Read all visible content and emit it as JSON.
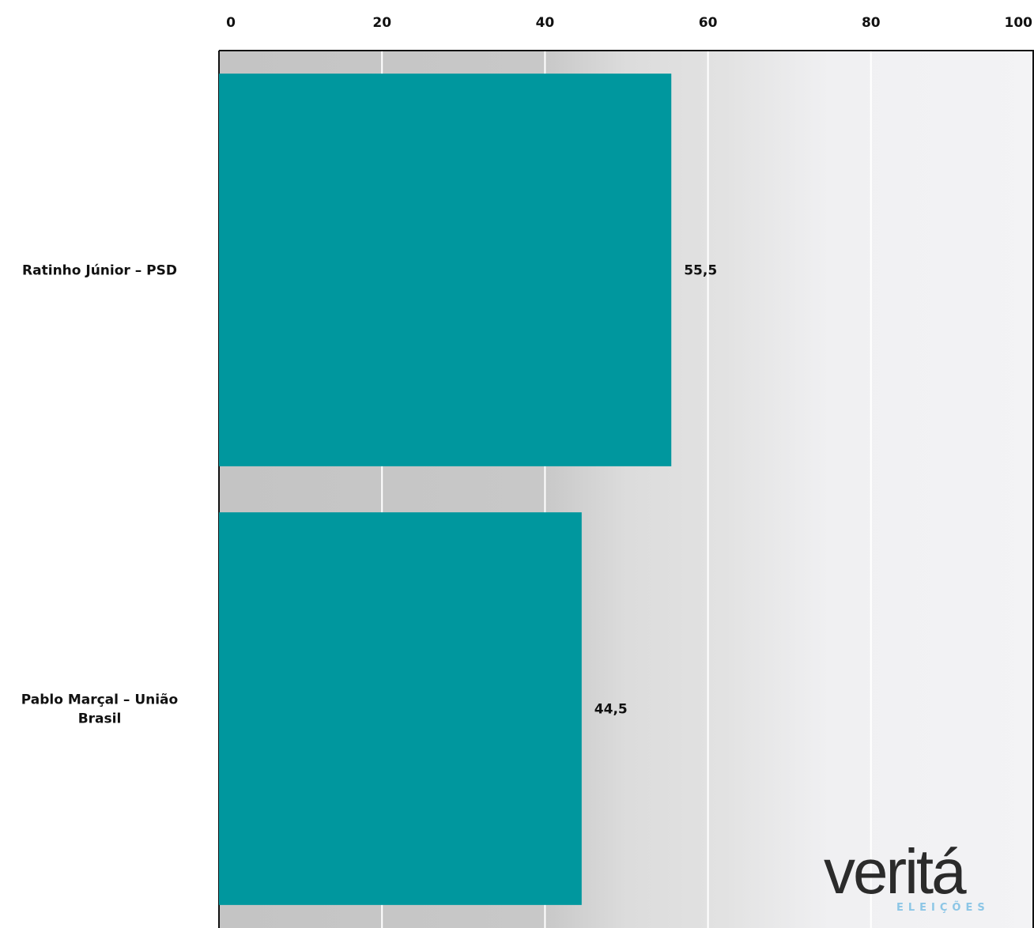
{
  "chart_data": {
    "type": "bar",
    "orientation": "horizontal",
    "categories": [
      "Ratinho Júnior – PSD",
      "Pablo Marçal – União Brasil"
    ],
    "values": [
      55.5,
      44.5
    ],
    "value_labels": [
      "55,5",
      "44,5"
    ],
    "xlim": [
      0,
      100
    ],
    "x_ticks": [
      "0",
      "20",
      "40",
      "60",
      "80",
      "100"
    ],
    "x_axis_position": "top",
    "grid": true,
    "bar_color": "#00979e",
    "title": "",
    "xlabel": "",
    "ylabel": ""
  },
  "logo": {
    "word": "veritá",
    "subtitle": "ELEIÇÕES"
  }
}
